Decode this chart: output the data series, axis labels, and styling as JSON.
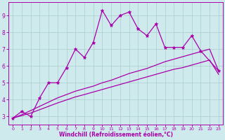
{
  "xlabel": "Windchill (Refroidissement éolien,°C)",
  "bg_color": "#ceeaec",
  "grid_color": "#aacccc",
  "line_color": "#aa00aa",
  "xlim": [
    -0.5,
    23.5
  ],
  "ylim": [
    2.5,
    9.8
  ],
  "xticks": [
    0,
    1,
    2,
    3,
    4,
    5,
    6,
    7,
    8,
    9,
    10,
    11,
    12,
    13,
    14,
    15,
    16,
    17,
    18,
    19,
    20,
    21,
    22,
    23
  ],
  "yticks": [
    3,
    4,
    5,
    6,
    7,
    8,
    9
  ],
  "line1_x": [
    0,
    1,
    2,
    3,
    4,
    5,
    6,
    7,
    8,
    9,
    10,
    11,
    12,
    13,
    14,
    15,
    16,
    17,
    18,
    19,
    20,
    21,
    23
  ],
  "line1_y": [
    2.9,
    3.3,
    3.0,
    4.1,
    5.0,
    5.0,
    5.9,
    7.0,
    6.5,
    7.4,
    9.3,
    8.4,
    9.0,
    9.2,
    8.2,
    7.8,
    8.5,
    7.1,
    7.1,
    7.1,
    7.8,
    6.9,
    5.7
  ],
  "line2_x": [
    0,
    1,
    2,
    3,
    4,
    5,
    6,
    7,
    8,
    9,
    10,
    11,
    12,
    13,
    14,
    15,
    16,
    17,
    18,
    19,
    20,
    21,
    22,
    23
  ],
  "line2_y": [
    2.9,
    3.1,
    3.35,
    3.6,
    3.85,
    4.1,
    4.3,
    4.5,
    4.65,
    4.8,
    5.0,
    5.15,
    5.35,
    5.55,
    5.7,
    5.85,
    6.05,
    6.25,
    6.4,
    6.55,
    6.7,
    6.85,
    7.0,
    5.7
  ],
  "line3_x": [
    0,
    1,
    2,
    3,
    4,
    5,
    6,
    7,
    8,
    9,
    10,
    11,
    12,
    13,
    14,
    15,
    16,
    17,
    18,
    19,
    20,
    21,
    22,
    23
  ],
  "line3_y": [
    2.9,
    3.05,
    3.2,
    3.4,
    3.6,
    3.8,
    3.98,
    4.16,
    4.3,
    4.45,
    4.6,
    4.75,
    4.9,
    5.05,
    5.2,
    5.35,
    5.5,
    5.65,
    5.8,
    5.9,
    6.05,
    6.2,
    6.35,
    5.5
  ]
}
